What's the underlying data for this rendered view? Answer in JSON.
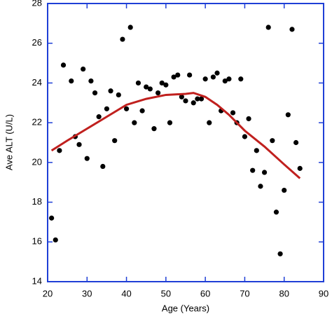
{
  "chart_data": {
    "type": "scatter",
    "xlabel": "Age (Years)",
    "ylabel": "Ave ALT (U/L)",
    "xlim": [
      20,
      90
    ],
    "xticks": [
      20,
      30,
      40,
      50,
      60,
      70,
      80,
      90
    ],
    "ylim": [
      14,
      28
    ],
    "yticks": [
      14,
      16,
      18,
      20,
      22,
      24,
      26,
      28
    ],
    "axis_color": "#1f3fd6",
    "series": [
      {
        "style": "dot",
        "color": "#000000",
        "x": [
          21,
          22,
          23,
          24,
          26,
          27,
          28,
          29,
          30,
          31,
          32,
          33,
          34,
          35,
          36,
          37,
          38,
          39,
          40,
          41,
          42,
          43,
          44,
          45,
          46,
          47,
          48,
          49,
          50,
          51,
          52,
          53,
          54,
          55,
          56,
          57,
          58,
          59,
          60,
          61,
          62,
          63,
          64,
          65,
          66,
          67,
          68,
          69,
          70,
          71,
          72,
          73,
          74,
          75,
          76,
          77,
          78,
          79,
          80,
          81,
          82,
          83,
          84
        ],
        "values": [
          17.2,
          16.1,
          20.6,
          24.9,
          24.1,
          21.3,
          20.9,
          24.7,
          20.2,
          24.1,
          23.5,
          22.3,
          19.8,
          22.7,
          23.6,
          21.1,
          23.4,
          26.2,
          22.7,
          26.8,
          22.0,
          24.0,
          22.6,
          23.8,
          23.7,
          21.7,
          23.5,
          24.0,
          23.9,
          22.0,
          24.3,
          24.4,
          23.3,
          23.1,
          24.4,
          23.0,
          23.2,
          23.2,
          24.2,
          22.0,
          24.3,
          24.5,
          22.6,
          24.1,
          24.2,
          22.5,
          22.0,
          24.2,
          21.3,
          22.2,
          19.6,
          20.6,
          18.8,
          19.5,
          26.8,
          21.1,
          17.5,
          15.4,
          18.6,
          22.4,
          26.7,
          21.0,
          19.7
        ]
      },
      {
        "style": "line",
        "color": "#c0201e",
        "x": [
          21,
          25,
          30,
          35,
          40,
          45,
          50,
          55,
          57,
          60,
          63,
          66,
          70,
          75,
          80,
          84
        ],
        "values": [
          20.6,
          21.1,
          21.7,
          22.3,
          22.9,
          23.2,
          23.4,
          23.45,
          23.5,
          23.3,
          22.9,
          22.4,
          21.6,
          20.8,
          19.9,
          19.2
        ]
      }
    ]
  }
}
